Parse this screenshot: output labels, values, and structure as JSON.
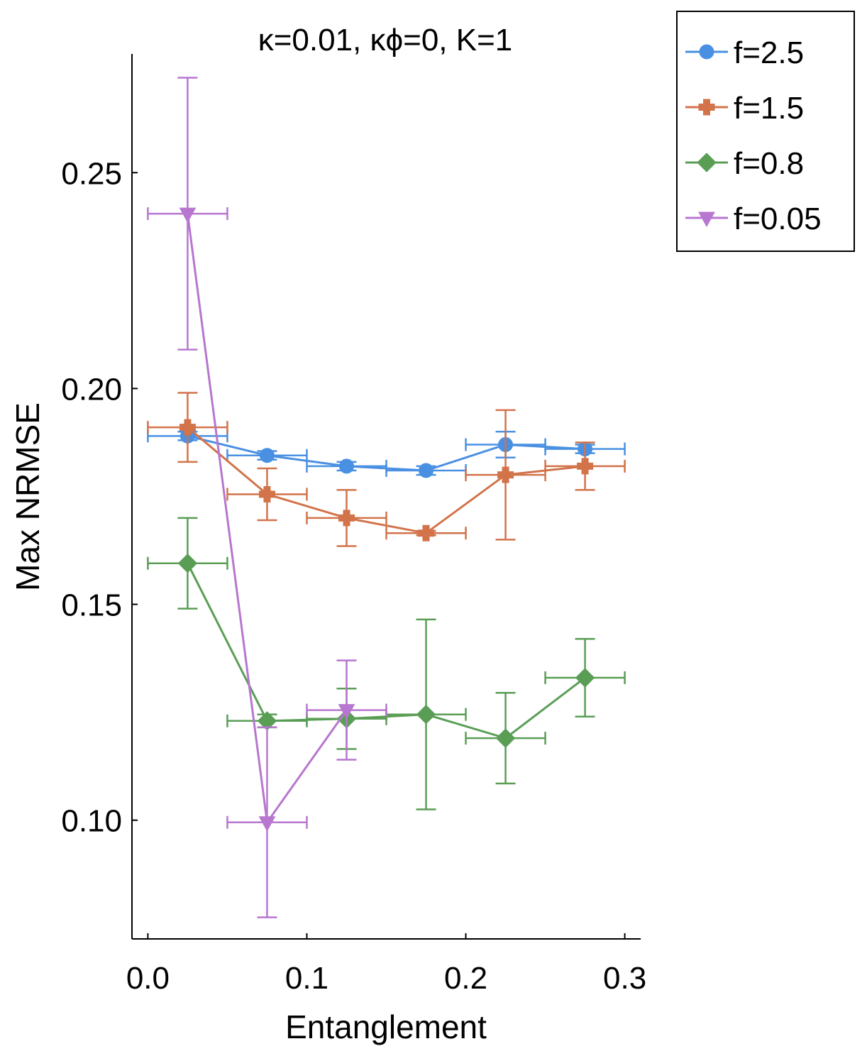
{
  "chart_data": {
    "type": "line",
    "title": "κ=0.01, κϕ=0, K=1",
    "xlabel": "Entanglement",
    "ylabel": "Max NRMSE",
    "xlim": [
      -0.01,
      0.31
    ],
    "ylim": [
      0.0725,
      0.2775
    ],
    "x_ticks": [
      {
        "value": 0.0,
        "label": "0.0"
      },
      {
        "value": 0.1,
        "label": "0.1"
      },
      {
        "value": 0.2,
        "label": "0.2"
      },
      {
        "value": 0.3,
        "label": "0.3"
      }
    ],
    "y_ticks": [
      {
        "value": 0.1,
        "label": "0.10"
      },
      {
        "value": 0.15,
        "label": "0.15"
      },
      {
        "value": 0.2,
        "label": "0.20"
      },
      {
        "value": 0.25,
        "label": "0.25"
      }
    ],
    "x_error_halfwidth": 0.025,
    "legend_position": "outside-top-right",
    "series": [
      {
        "name": "f=2.5",
        "color": "#4a90e2",
        "marker": "circle",
        "x": [
          0.025,
          0.075,
          0.125,
          0.175,
          0.225,
          0.275
        ],
        "y": [
          0.189,
          0.1845,
          0.182,
          0.181,
          0.187,
          0.186
        ],
        "yerr": [
          0.001,
          0.001,
          0.001,
          0.001,
          0.003,
          0.001
        ]
      },
      {
        "name": "f=1.5",
        "color": "#d2734a",
        "marker": "plus",
        "x": [
          0.025,
          0.075,
          0.125,
          0.175,
          0.225,
          0.275
        ],
        "y": [
          0.191,
          0.1755,
          0.17,
          0.1665,
          0.18,
          0.182
        ],
        "yerr": [
          0.008,
          0.006,
          0.0065,
          0.0005,
          0.015,
          0.0055
        ]
      },
      {
        "name": "f=0.8",
        "color": "#5a9e56",
        "marker": "diamond",
        "x": [
          0.025,
          0.075,
          0.125,
          0.175,
          0.225,
          0.275
        ],
        "y": [
          0.1595,
          0.123,
          0.1235,
          0.1245,
          0.119,
          0.133
        ],
        "yerr": [
          0.0105,
          0.0015,
          0.007,
          0.022,
          0.0105,
          0.009
        ]
      },
      {
        "name": "f=0.05",
        "color": "#b776cf",
        "marker": "triangle-down",
        "x": [
          0.025,
          0.075,
          0.125
        ],
        "y": [
          0.2405,
          0.0995,
          0.1255
        ],
        "yerr": [
          0.0315,
          0.022,
          0.0115
        ]
      }
    ]
  }
}
